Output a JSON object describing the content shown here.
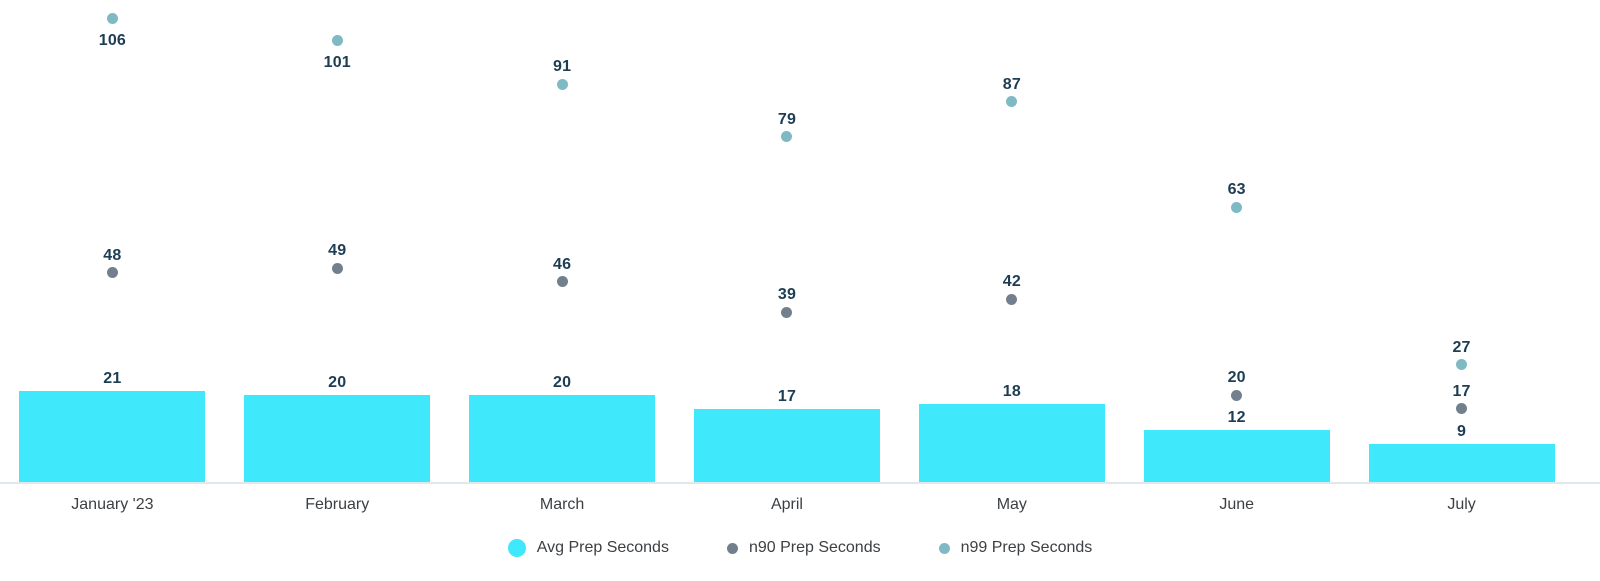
{
  "chart_data": {
    "type": "bar",
    "title": "",
    "xlabel": "",
    "ylabel": "",
    "categories": [
      "January '23",
      "February",
      "March",
      "April",
      "May",
      "June",
      "July"
    ],
    "series": [
      {
        "name": "Avg Prep Seconds",
        "render": "bar",
        "color": "#3FE8FB",
        "marker_size": 18,
        "values": [
          21,
          20,
          20,
          17,
          18,
          12,
          9
        ]
      },
      {
        "name": "n90 Prep Seconds",
        "render": "scatter",
        "color": "#71808C",
        "marker_size": 11,
        "values": [
          48,
          49,
          46,
          39,
          42,
          20,
          17
        ]
      },
      {
        "name": "n99 Prep Seconds",
        "render": "scatter",
        "color": "#7FB9C4",
        "marker_size": 11,
        "values": [
          106,
          101,
          91,
          79,
          87,
          63,
          27
        ]
      }
    ],
    "ylim": [
      0,
      110
    ],
    "grid": false,
    "y_axis_visible": false,
    "value_labels": true,
    "legend_position": "bottom",
    "colors": {
      "value_label": "#1D3D53",
      "axis_text": "#3D4043",
      "axis_line": "#E2E7EC",
      "background": "#FFFFFF"
    }
  }
}
